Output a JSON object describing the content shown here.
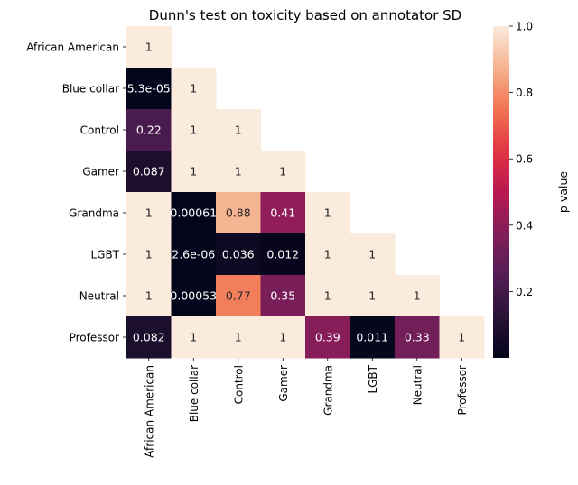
{
  "chart_data": {
    "type": "heatmap",
    "title": "Dunn's test on toxicity based on annotator SD",
    "xlabel": "",
    "ylabel": "",
    "categories": [
      "African American",
      "Blue collar",
      "Control",
      "Gamer",
      "Grandma",
      "LGBT",
      "Neutral",
      "Professor"
    ],
    "mask": "upper triangle hidden (lower triangle incl. diagonal shown)",
    "colormap": "rocket",
    "colorbar": {
      "label": "p-value",
      "range": [
        2.6e-06,
        1.0
      ],
      "ticks": [
        0.2,
        0.4,
        0.6,
        0.8,
        1.0
      ],
      "tick_labels": [
        "0.2",
        "0.4",
        "0.6",
        "0.8",
        "1.0"
      ]
    },
    "rows": [
      {
        "name": "African American",
        "values": [
          1
        ],
        "labels": [
          "1"
        ]
      },
      {
        "name": "Blue collar",
        "values": [
          5.3e-05,
          1
        ],
        "labels": [
          "5.3e-05",
          "1"
        ]
      },
      {
        "name": "Control",
        "values": [
          0.22,
          1,
          1
        ],
        "labels": [
          "0.22",
          "1",
          "1"
        ]
      },
      {
        "name": "Gamer",
        "values": [
          0.087,
          1,
          1,
          1
        ],
        "labels": [
          "0.087",
          "1",
          "1",
          "1"
        ]
      },
      {
        "name": "Grandma",
        "values": [
          1,
          0.00061,
          0.88,
          0.41,
          1
        ],
        "labels": [
          "1",
          "0.00061",
          "0.88",
          "0.41",
          "1"
        ]
      },
      {
        "name": "LGBT",
        "values": [
          1,
          2.6e-06,
          0.036,
          0.012,
          1,
          1
        ],
        "labels": [
          "1",
          "2.6e-06",
          "0.036",
          "0.012",
          "1",
          "1"
        ]
      },
      {
        "name": "Neutral",
        "values": [
          1,
          0.00053,
          0.77,
          0.35,
          1,
          1,
          1
        ],
        "labels": [
          "1",
          "0.00053",
          "0.77",
          "0.35",
          "1",
          "1",
          "1"
        ]
      },
      {
        "name": "Professor",
        "values": [
          0.082,
          1,
          1,
          1,
          0.39,
          0.011,
          0.33,
          1
        ],
        "labels": [
          "0.082",
          "1",
          "1",
          "1",
          "0.39",
          "0.011",
          "0.33",
          "1"
        ]
      }
    ]
  }
}
